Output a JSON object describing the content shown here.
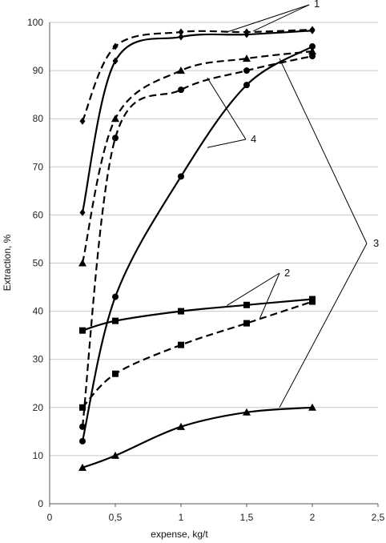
{
  "chart_data": {
    "type": "line",
    "xlabel": "expense, kg/t",
    "ylabel": "Extraction, %",
    "xlim": [
      0,
      2.5
    ],
    "ylim": [
      0,
      100
    ],
    "x_ticks": [
      "0",
      "0,5",
      "1",
      "1,5",
      "2",
      "2,5"
    ],
    "y_ticks": [
      "0",
      "10",
      "20",
      "30",
      "40",
      "50",
      "60",
      "70",
      "80",
      "90",
      "100"
    ],
    "grid": "horizontal",
    "series": [
      {
        "group": "1",
        "style": "solid",
        "marker": "diamond",
        "x": [
          0.25,
          0.5,
          1,
          1.5,
          2
        ],
        "y": [
          60.5,
          92,
          97,
          97.5,
          98.3
        ]
      },
      {
        "group": "1",
        "style": "dashed",
        "marker": "diamond",
        "x": [
          0.25,
          0.5,
          1,
          1.5,
          2
        ],
        "y": [
          79.5,
          95,
          98,
          98,
          98.5
        ]
      },
      {
        "group": "2",
        "style": "solid",
        "marker": "square",
        "x": [
          0.25,
          0.5,
          1,
          1.5,
          2
        ],
        "y": [
          36,
          38,
          40,
          41.3,
          42.5
        ]
      },
      {
        "group": "2",
        "style": "dashed",
        "marker": "square",
        "x": [
          0.25,
          0.5,
          1,
          1.5,
          2
        ],
        "y": [
          20,
          27,
          33,
          37.5,
          42
        ]
      },
      {
        "group": "3",
        "style": "solid",
        "marker": "triangle",
        "x": [
          0.25,
          0.5,
          1,
          1.5,
          2
        ],
        "y": [
          7.5,
          10,
          16,
          19,
          20
        ]
      },
      {
        "group": "3",
        "style": "dashed",
        "marker": "triangle",
        "x": [
          0.25,
          0.5,
          1,
          1.5,
          2
        ],
        "y": [
          50,
          80,
          90,
          92.5,
          94
        ]
      },
      {
        "group": "4",
        "style": "solid",
        "marker": "circle",
        "x": [
          0.25,
          0.5,
          1,
          1.5,
          2
        ],
        "y": [
          13,
          43,
          68,
          87,
          95
        ]
      },
      {
        "group": "4",
        "style": "dashed",
        "marker": "circle",
        "x": [
          0.25,
          0.5,
          1,
          1.5,
          2
        ],
        "y": [
          16,
          76,
          86,
          90,
          93
        ]
      }
    ],
    "annotations": [
      {
        "label": "1",
        "points_to": [
          [
            1.35,
            98.0
          ],
          [
            1.55,
            98.2
          ]
        ]
      },
      {
        "label": "2",
        "points_to": [
          [
            1.35,
            41.2
          ],
          [
            1.6,
            38.5
          ]
        ]
      },
      {
        "label": "3",
        "points_to": [
          [
            1.75,
            92.5
          ],
          [
            1.75,
            20
          ]
        ]
      },
      {
        "label": "4",
        "points_to": [
          [
            1.2,
            88.5
          ],
          [
            1.2,
            74
          ]
        ]
      }
    ]
  }
}
